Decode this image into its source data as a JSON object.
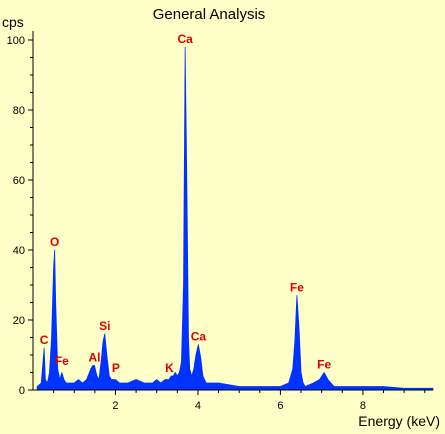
{
  "colors": {
    "background": "#ffffc8",
    "spectrum": "#0033ff",
    "peak_label": "#e00000",
    "axis": "#000000"
  },
  "chart_data": {
    "type": "area",
    "title": "General Analysis",
    "xlabel": "Energy (keV)",
    "ylabel": "cps",
    "xlim": [
      0,
      9.7
    ],
    "ylim": [
      0,
      102
    ],
    "x_ticks": [
      2,
      4,
      6,
      8
    ],
    "y_ticks": [
      0,
      20,
      40,
      60,
      80,
      100
    ],
    "series": [
      {
        "x": [
          0.1,
          0.2,
          0.27,
          0.3,
          0.35,
          0.4,
          0.45,
          0.5,
          0.525,
          0.55,
          0.6,
          0.65,
          0.7,
          0.75,
          0.8,
          0.9,
          1.0,
          1.1,
          1.2,
          1.3,
          1.4,
          1.45,
          1.49,
          1.55,
          1.6,
          1.65,
          1.7,
          1.74,
          1.8,
          1.85,
          1.9,
          2.0,
          2.1,
          2.3,
          2.5,
          2.7,
          2.9,
          3.0,
          3.1,
          3.2,
          3.3,
          3.35,
          3.4,
          3.45,
          3.5,
          3.55,
          3.6,
          3.65,
          3.69,
          3.73,
          3.77,
          3.8,
          3.85,
          3.9,
          3.95,
          4.01,
          4.07,
          4.12,
          4.2,
          4.3,
          4.5,
          5.0,
          5.5,
          6.0,
          6.2,
          6.3,
          6.35,
          6.4,
          6.45,
          6.5,
          6.55,
          6.6,
          6.8,
          6.95,
          7.06,
          7.15,
          7.3,
          7.6,
          8.0,
          8.5,
          9.0,
          9.5,
          9.7
        ],
        "y": [
          1,
          2,
          12,
          3,
          2,
          5,
          15,
          35,
          40,
          25,
          6,
          3,
          5,
          3,
          2,
          2,
          2,
          3,
          2,
          3,
          6,
          7,
          7,
          4,
          3,
          8,
          14,
          16,
          9,
          4,
          3,
          3,
          2,
          2,
          3,
          2,
          2,
          3,
          2,
          3,
          3,
          4,
          4,
          5,
          4,
          5,
          8,
          30,
          98,
          60,
          15,
          6,
          4,
          6,
          10,
          13,
          9,
          4,
          2,
          2,
          2,
          1,
          1,
          1,
          2,
          6,
          14,
          27,
          18,
          5,
          2,
          1,
          2,
          3,
          5,
          3,
          1,
          1,
          1,
          1,
          0.5,
          0.5,
          0.5
        ]
      }
    ],
    "annotations": [
      {
        "text": "C",
        "x": 0.27,
        "y": 12
      },
      {
        "text": "O",
        "x": 0.525,
        "y": 40
      },
      {
        "text": "Fe",
        "x": 0.7,
        "y": 6
      },
      {
        "text": "Al",
        "x": 1.49,
        "y": 7
      },
      {
        "text": "Si",
        "x": 1.74,
        "y": 16
      },
      {
        "text": "P",
        "x": 2.01,
        "y": 4
      },
      {
        "text": "K",
        "x": 3.31,
        "y": 4
      },
      {
        "text": "Ca",
        "x": 3.69,
        "y": 98
      },
      {
        "text": "Ca",
        "x": 4.01,
        "y": 13
      },
      {
        "text": "Fe",
        "x": 6.4,
        "y": 27
      },
      {
        "text": "Fe",
        "x": 7.06,
        "y": 5
      }
    ]
  }
}
